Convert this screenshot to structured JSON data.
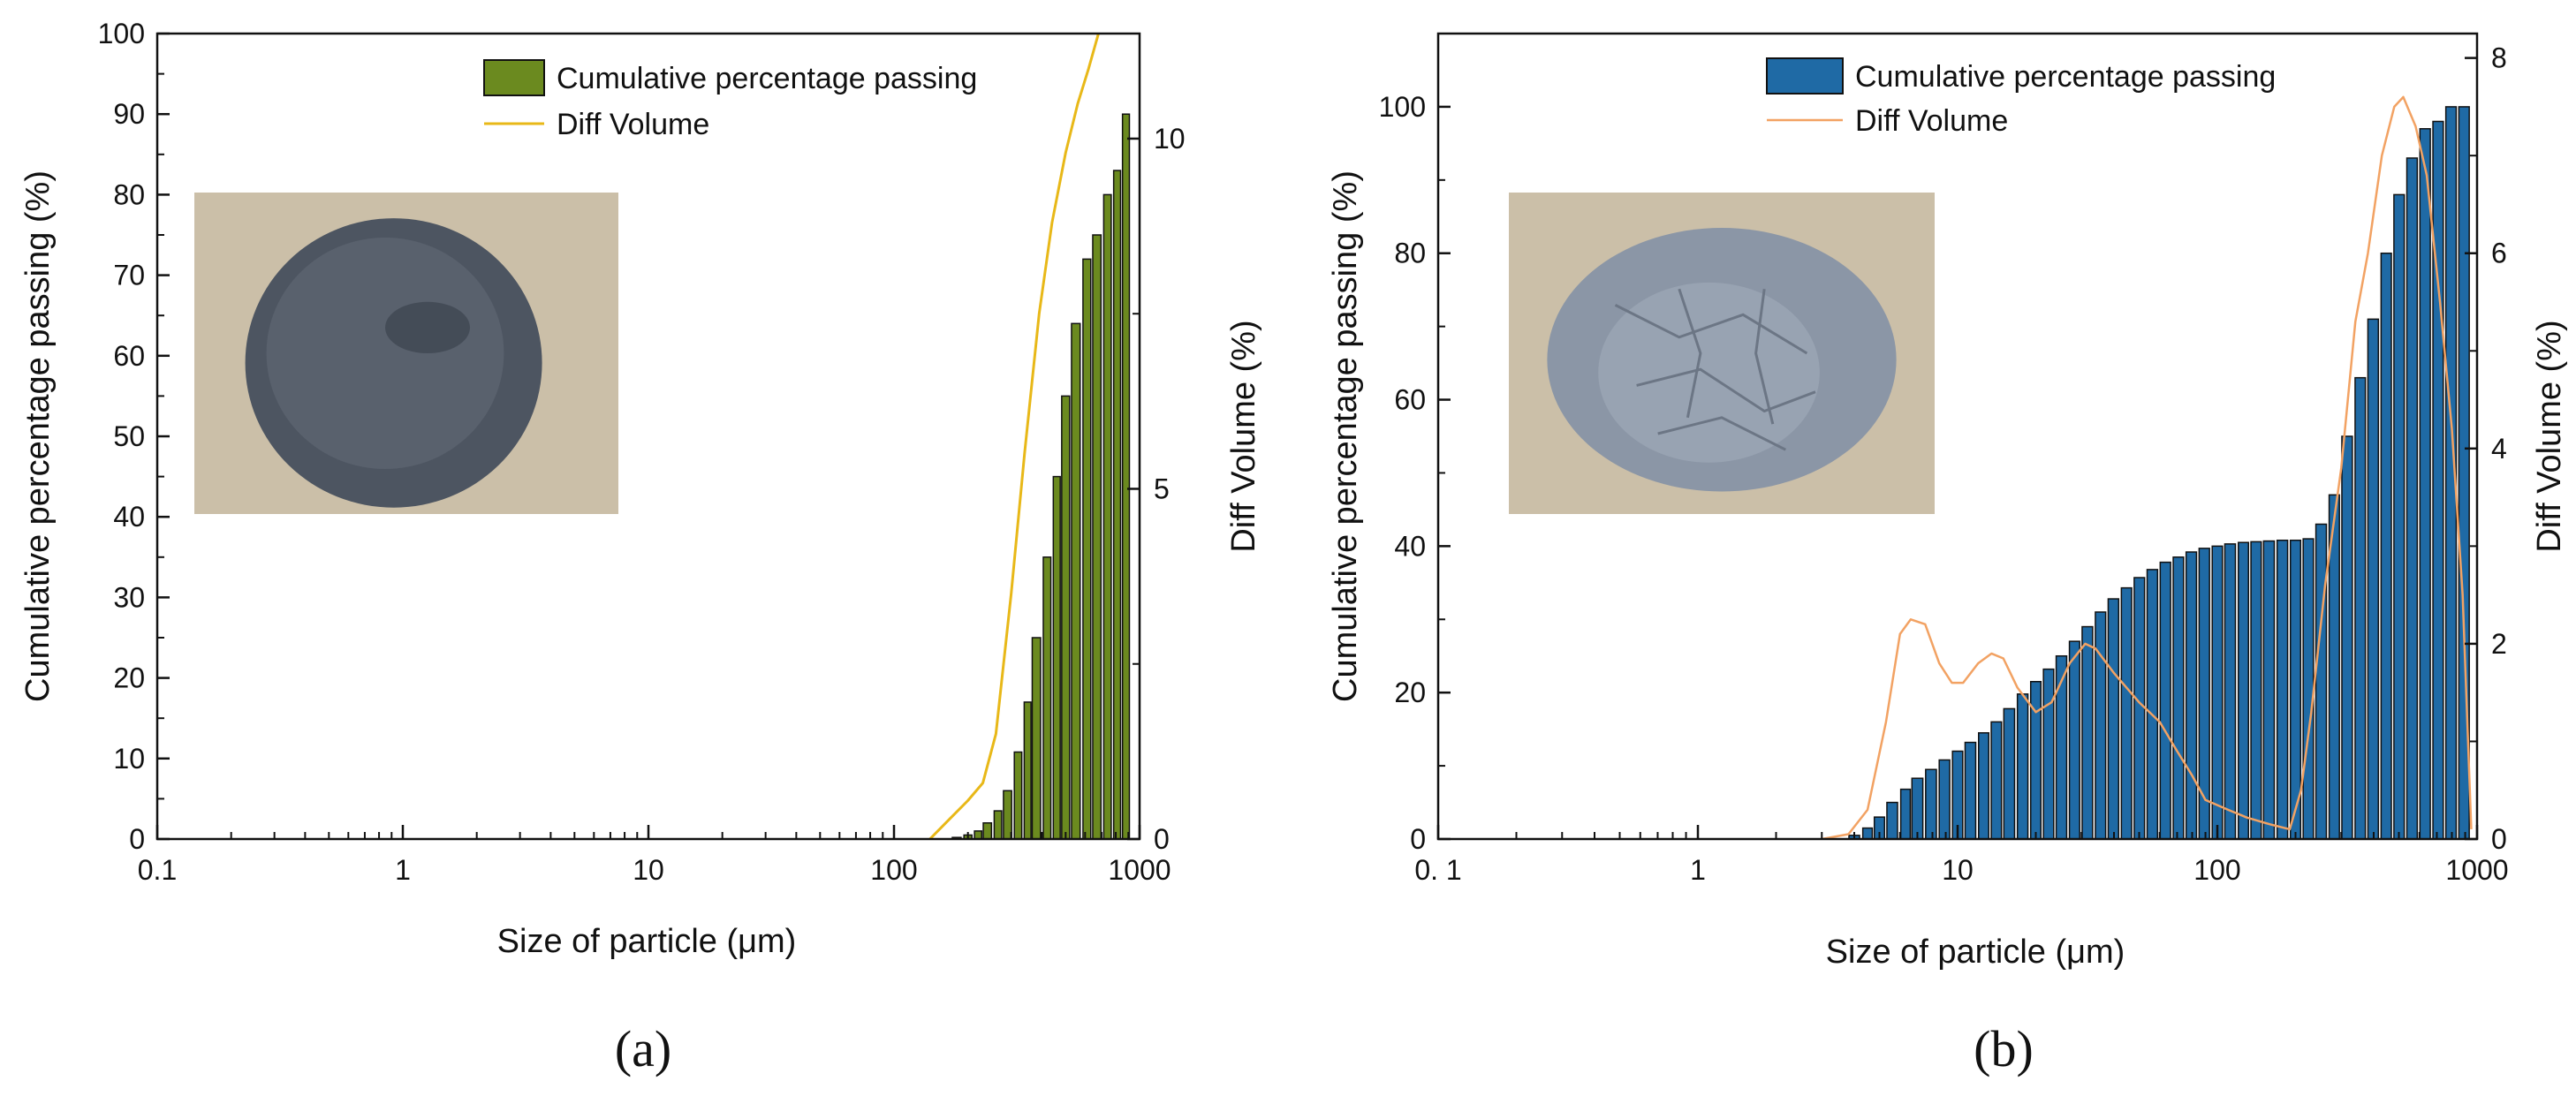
{
  "chart_data": [
    {
      "id": "a",
      "type": "bar",
      "panel_label": "(a)",
      "xlabel": "Size of particle (μm)",
      "ylabel": "Cumulative percentage passing (%)",
      "y2label": "Diff Volume (%)",
      "xscale": "log",
      "xlim": [
        0.1,
        1000
      ],
      "ylim": [
        0,
        100
      ],
      "y2lim": [
        0,
        11.5
      ],
      "xticks": [
        0.1,
        1,
        10,
        100,
        1000
      ],
      "xtick_labels": [
        "0.1",
        "1",
        "10",
        "100",
        "1000"
      ],
      "yticks": [
        0,
        10,
        20,
        30,
        40,
        50,
        60,
        70,
        80,
        90,
        100
      ],
      "ytick_labels": [
        "0",
        "10",
        "20",
        "30",
        "40",
        "50",
        "60",
        "70",
        "80",
        "90",
        "100"
      ],
      "y2ticks": [
        0,
        5,
        10
      ],
      "y2tick_labels": [
        "0",
        "5",
        "10"
      ],
      "legend": [
        "Cumulative percentage passing",
        "Diff Volume"
      ],
      "legend_position": "top-right",
      "bar_color": "#6b8a1f",
      "line_color": "#e8b818",
      "line_width": 3,
      "has_inset_photo": true,
      "inset_photo": "gray granular powder",
      "series": [
        {
          "name": "Cumulative percentage passing",
          "kind": "bar",
          "x": [
            180,
            200,
            220,
            240,
            265,
            290,
            320,
            350,
            380,
            420,
            460,
            500,
            550,
            610,
            670,
            740,
            810,
            880
          ],
          "values": [
            0.2,
            0.5,
            1.0,
            2.0,
            3.5,
            6.0,
            10.8,
            17.0,
            25.0,
            35.0,
            45.0,
            55.0,
            64.0,
            72.0,
            75.0,
            80.0,
            83.0,
            90.0
          ]
        },
        {
          "name": "Diff Volume",
          "kind": "line",
          "x": [
            140,
            170,
            200,
            230,
            260,
            300,
            340,
            390,
            440,
            500,
            560,
            620,
            680
          ],
          "values": [
            0.0,
            0.3,
            0.55,
            0.8,
            1.5,
            3.5,
            5.5,
            7.5,
            8.8,
            9.8,
            10.5,
            11.0,
            11.5
          ]
        }
      ]
    },
    {
      "id": "b",
      "type": "bar",
      "panel_label": "(b)",
      "xlabel": "Size of particle (μm)",
      "ylabel": "Cumulative percentage passing (%)",
      "y2label": "Diff Volume (%)",
      "xscale": "log",
      "xlim": [
        0.1,
        1000
      ],
      "ylim": [
        0,
        110
      ],
      "y2lim": [
        0,
        8.25
      ],
      "xticks": [
        0.1,
        1,
        10,
        100,
        1000
      ],
      "xtick_labels": [
        "0. 1",
        "1",
        "10",
        "100",
        "1000"
      ],
      "yticks": [
        0,
        20,
        40,
        60,
        80,
        100
      ],
      "ytick_labels": [
        "0",
        "20",
        "40",
        "60",
        "80",
        "100"
      ],
      "y2ticks": [
        0,
        2,
        4,
        6,
        8
      ],
      "y2tick_labels": [
        "0",
        "2",
        "4",
        "6",
        "8"
      ],
      "legend": [
        "Cumulative percentage passing",
        "Diff Volume"
      ],
      "legend_position": "top-right",
      "bar_color": "#1f6aa5",
      "line_color": "#f2a263",
      "line_width": 2.5,
      "has_inset_photo": true,
      "inset_photo": "gray cracked cake of powder",
      "series": [
        {
          "name": "Cumulative percentage passing",
          "kind": "bar",
          "x": [
            4.0,
            4.5,
            5.0,
            5.6,
            6.3,
            7.0,
            7.9,
            8.9,
            10.0,
            11.2,
            12.6,
            14.1,
            15.8,
            17.8,
            20.0,
            22.4,
            25.1,
            28.2,
            31.6,
            35.5,
            39.8,
            44.7,
            50.1,
            56.2,
            63.1,
            70.8,
            79.4,
            89.1,
            100,
            112,
            126,
            141,
            158,
            178,
            200,
            224,
            251,
            282,
            316,
            355,
            398,
            447,
            501,
            562,
            631,
            708,
            794,
            891
          ],
          "values": [
            0.5,
            1.5,
            3.0,
            5.0,
            6.8,
            8.3,
            9.5,
            10.8,
            12.0,
            13.2,
            14.5,
            16.0,
            17.8,
            19.8,
            21.5,
            23.2,
            25.0,
            27.0,
            29.0,
            31.0,
            32.8,
            34.3,
            35.7,
            36.8,
            37.8,
            38.5,
            39.2,
            39.7,
            40.0,
            40.3,
            40.5,
            40.6,
            40.7,
            40.8,
            40.8,
            41.0,
            43.0,
            47.0,
            55.0,
            63.0,
            71.0,
            80.0,
            88.0,
            93.0,
            97.0,
            98.0,
            100.0,
            100.0
          ]
        },
        {
          "name": "Diff Volume",
          "kind": "line",
          "x": [
            3.0,
            3.8,
            4.5,
            5.3,
            6.0,
            6.6,
            7.5,
            8.5,
            9.5,
            10.5,
            12.0,
            13.5,
            15.0,
            17.0,
            20.0,
            23.0,
            27.0,
            31.0,
            34.0,
            40.0,
            50.0,
            60.0,
            70.0,
            80.0,
            90.0,
            110.0,
            130.0,
            160.0,
            190.0,
            210.0,
            230.0,
            260.0,
            300.0,
            340.0,
            380.0,
            430.0,
            480.0,
            520.0,
            580.0,
            640.0,
            720.0,
            800.0,
            880.0,
            950.0
          ],
          "values": [
            0.0,
            0.05,
            0.3,
            1.2,
            2.1,
            2.25,
            2.2,
            1.8,
            1.6,
            1.6,
            1.8,
            1.9,
            1.85,
            1.55,
            1.3,
            1.4,
            1.8,
            2.0,
            1.95,
            1.7,
            1.4,
            1.2,
            0.9,
            0.65,
            0.4,
            0.3,
            0.22,
            0.15,
            0.1,
            0.5,
            1.3,
            2.6,
            3.8,
            5.3,
            6.0,
            7.0,
            7.5,
            7.6,
            7.3,
            6.8,
            5.5,
            4.2,
            2.5,
            0.1
          ]
        }
      ]
    }
  ]
}
